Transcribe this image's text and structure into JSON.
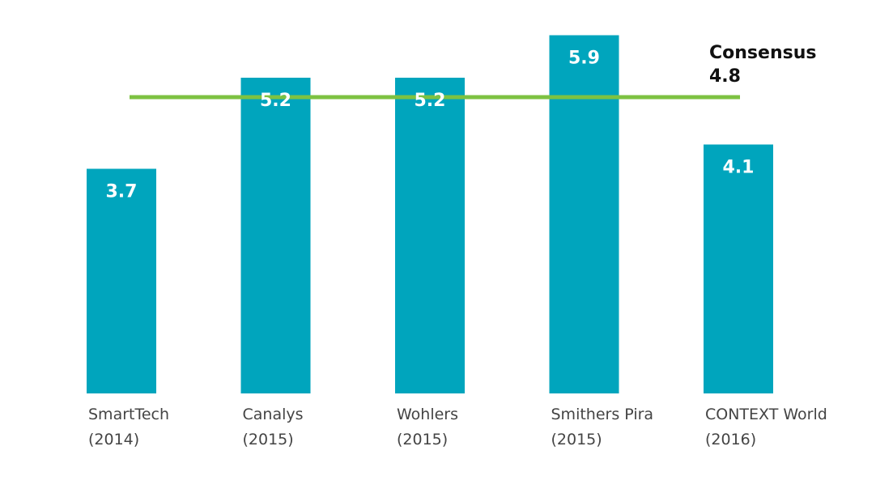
{
  "chart_data": {
    "type": "bar",
    "categories": [
      [
        "SmartTech",
        "(2014)"
      ],
      [
        "Canalys",
        "(2015)"
      ],
      [
        "Wohlers",
        "(2015)"
      ],
      [
        "Smithers Pira",
        "(2015)"
      ],
      [
        "CONTEXT World",
        "(2016)"
      ]
    ],
    "values": [
      3.7,
      5.2,
      5.2,
      5.9,
      4.1
    ],
    "value_labels": [
      "3.7",
      "5.2",
      "5.2",
      "5.9",
      "4.1"
    ],
    "ylim": [
      0,
      6
    ],
    "grid": false,
    "bar_color": "#00A5BD",
    "reference_line": {
      "label": "Consensus",
      "value": 4.8,
      "value_label": "4.8",
      "color": "#7DC242"
    }
  }
}
